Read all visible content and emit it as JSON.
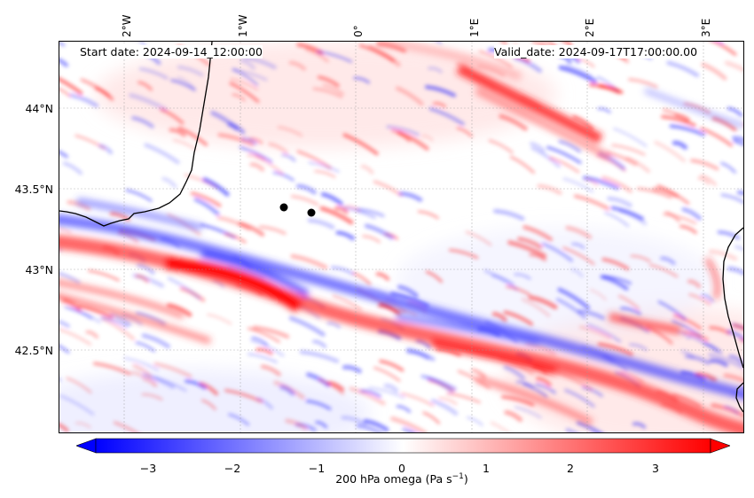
{
  "header": {
    "start_date": "Start date: 2024-09-14_12:00:00",
    "valid_date": "Valid_date: 2024-09-17T17:00:00.00"
  },
  "axes": {
    "lon_ticks": [
      "2°W",
      "1°W",
      "0°",
      "1°E",
      "2°E",
      "3°E"
    ],
    "lat_ticks": [
      "44°N",
      "43.5°N",
      "43°N",
      "42.5°N"
    ]
  },
  "colorbar": {
    "label": "200 hPa omega (Pa s",
    "label_exp": "−1",
    "label_end": ")",
    "ticks": [
      "−3",
      "−2",
      "−1",
      "0",
      "1",
      "2",
      "3"
    ],
    "range": [
      -3.5,
      3.5
    ],
    "cmap": [
      "#0000ff",
      "#ffffff",
      "#ff0000"
    ]
  },
  "markers": {
    "points": [
      {
        "name": "point-1"
      },
      {
        "name": "point-2"
      }
    ],
    "color": "#000000"
  },
  "colors": {
    "negative": "#0000ff",
    "positive": "#ff0000",
    "coast": "#000000"
  }
}
